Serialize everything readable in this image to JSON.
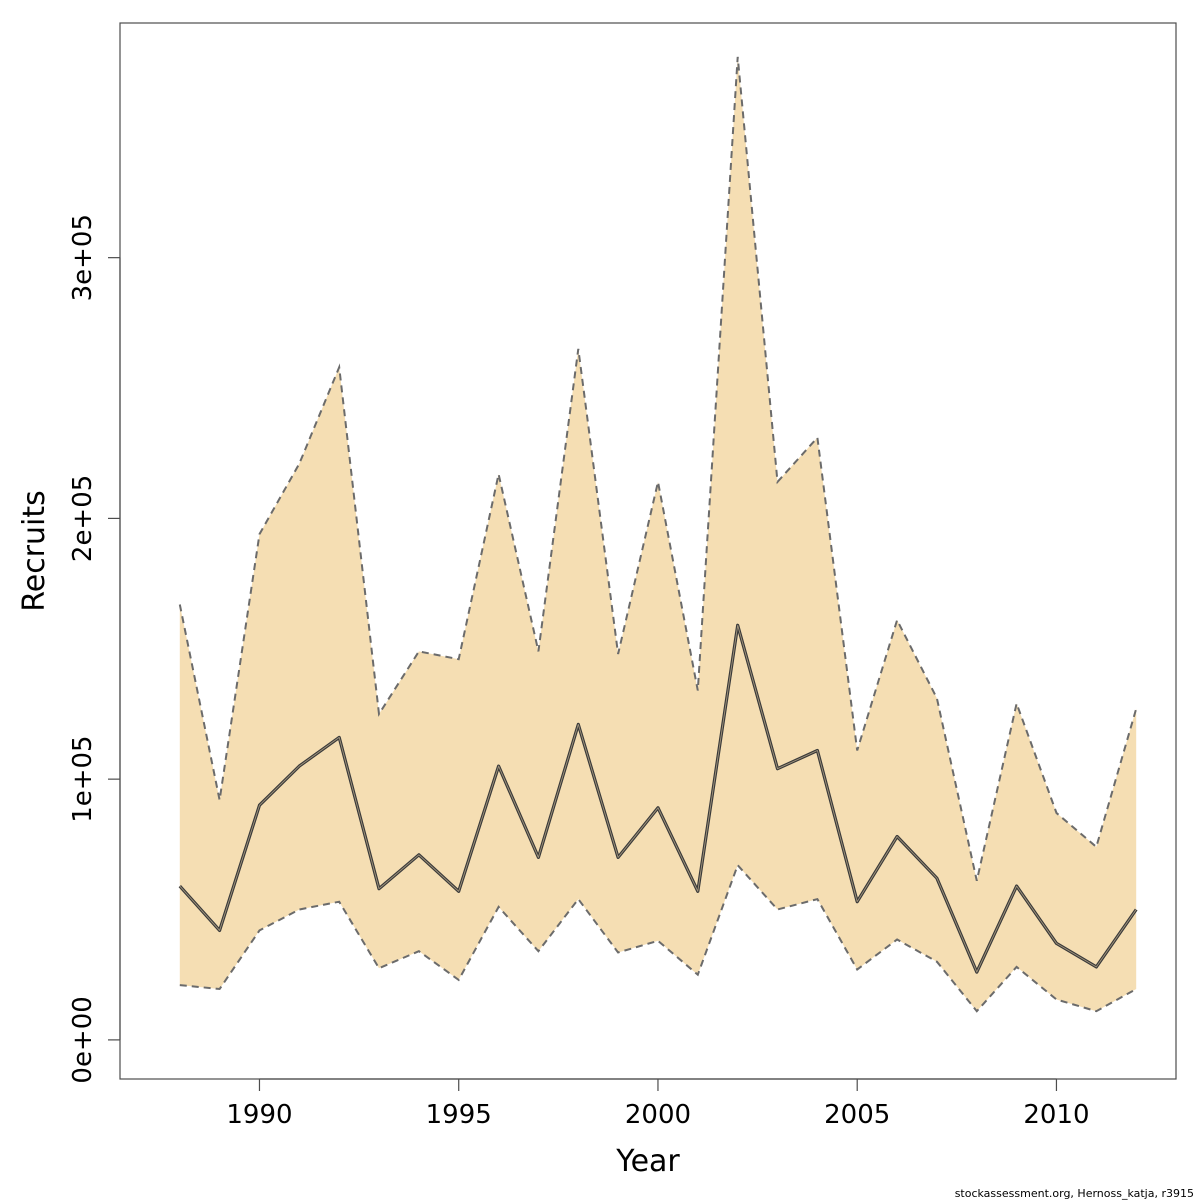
{
  "chart_data": {
    "type": "line",
    "title": "",
    "xlabel": "Year",
    "ylabel": "Recruits",
    "xlim": [
      1986.5,
      2013.0
    ],
    "ylim": [
      -15000,
      390000
    ],
    "xticks": [
      1990,
      1995,
      2000,
      2005,
      2010
    ],
    "xtick_labels": [
      "1990",
      "1995",
      "2000",
      "2005",
      "2010"
    ],
    "yticks": [
      0,
      100000,
      200000,
      300000
    ],
    "ytick_labels": [
      "0e+00",
      "1e+05",
      "2e+05",
      "3e+05"
    ],
    "grid": false,
    "x": [
      1988,
      1989,
      1990,
      1991,
      1992,
      1993,
      1994,
      1995,
      1996,
      1997,
      1998,
      1999,
      2000,
      2001,
      2002,
      2003,
      2004,
      2005,
      2006,
      2007,
      2008,
      2009,
      2010,
      2011,
      2012
    ],
    "series": [
      {
        "role": "estimate",
        "values": [
          59000,
          42000,
          90000,
          105000,
          116000,
          58000,
          71000,
          57000,
          105000,
          70000,
          121000,
          70000,
          89000,
          57000,
          159000,
          104000,
          111000,
          53000,
          78000,
          62000,
          26000,
          59000,
          37000,
          28000,
          50000
        ]
      },
      {
        "role": "upper",
        "values": [
          167000,
          92000,
          194000,
          221000,
          258000,
          125000,
          149000,
          146000,
          217000,
          149000,
          265000,
          148000,
          214000,
          134000,
          377000,
          214000,
          231000,
          111000,
          161000,
          131000,
          61000,
          129000,
          87000,
          74000,
          127000
        ]
      },
      {
        "role": "lower",
        "values": [
          21000,
          19500,
          42000,
          50000,
          53000,
          27500,
          34000,
          23000,
          51000,
          34000,
          54000,
          33500,
          38000,
          25000,
          67000,
          50000,
          54000,
          27000,
          38500,
          30000,
          11000,
          28000,
          15500,
          11000,
          19500
        ]
      }
    ],
    "colors": {
      "band_fill": "#f5deb3",
      "band_edge": "#6b6b6b",
      "line": "#3a3a3a",
      "axis": "#4d4d4d"
    }
  },
  "footer": {
    "credit": "stockassessment.org, Hernoss_katja, r3915"
  }
}
